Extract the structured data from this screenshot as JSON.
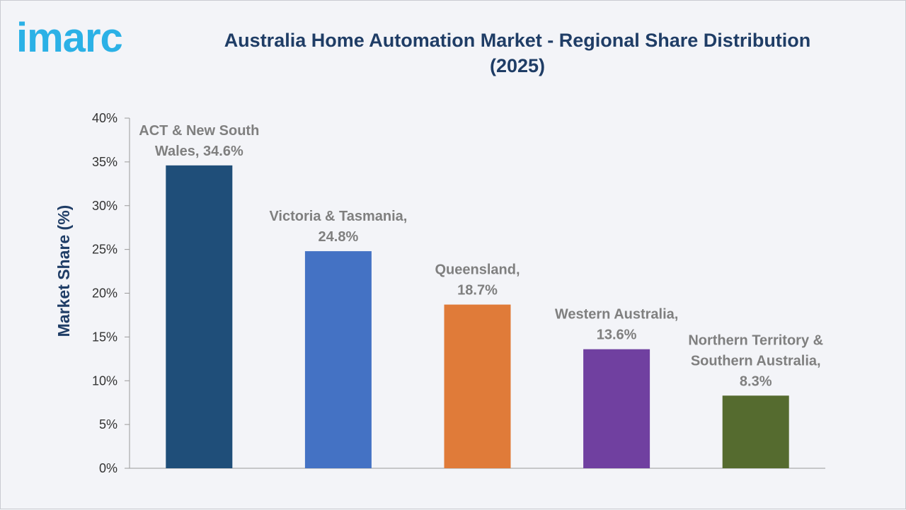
{
  "brand": {
    "logo_text": "imarc",
    "logo_color": "#2bb1e6"
  },
  "chart_data": {
    "type": "bar",
    "title_lines": [
      "Australia Home Automation Market - Regional Share Distribution",
      "(2025)"
    ],
    "xlabel": "",
    "ylabel": "Market Share (%)",
    "ylim": [
      0,
      40
    ],
    "yticks": [
      "0%",
      "5%",
      "10%",
      "15%",
      "20%",
      "25%",
      "30%",
      "35%",
      "40%"
    ],
    "ytick_values": [
      0,
      5,
      10,
      15,
      20,
      25,
      30,
      35,
      40
    ],
    "grid": false,
    "legend": "none",
    "categories": [
      "ACT & New South Wales",
      "Victoria & Tasmania",
      "Queensland",
      "Western Australia",
      "Northern Territory & Southern Australia"
    ],
    "values": [
      34.6,
      24.8,
      18.7,
      13.6,
      8.3
    ],
    "data_labels": [
      [
        "ACT & New South",
        "Wales, 34.6%"
      ],
      [
        "Victoria & Tasmania,",
        "24.8%"
      ],
      [
        "Queensland,",
        "18.7%"
      ],
      [
        "Western Australia,",
        "13.6%"
      ],
      [
        "Northern Territory &",
        "Southern Australia,",
        "8.3%"
      ]
    ],
    "colors": [
      "#1f4e79",
      "#4472c4",
      "#e07b39",
      "#7040a0",
      "#556b2f"
    ]
  }
}
